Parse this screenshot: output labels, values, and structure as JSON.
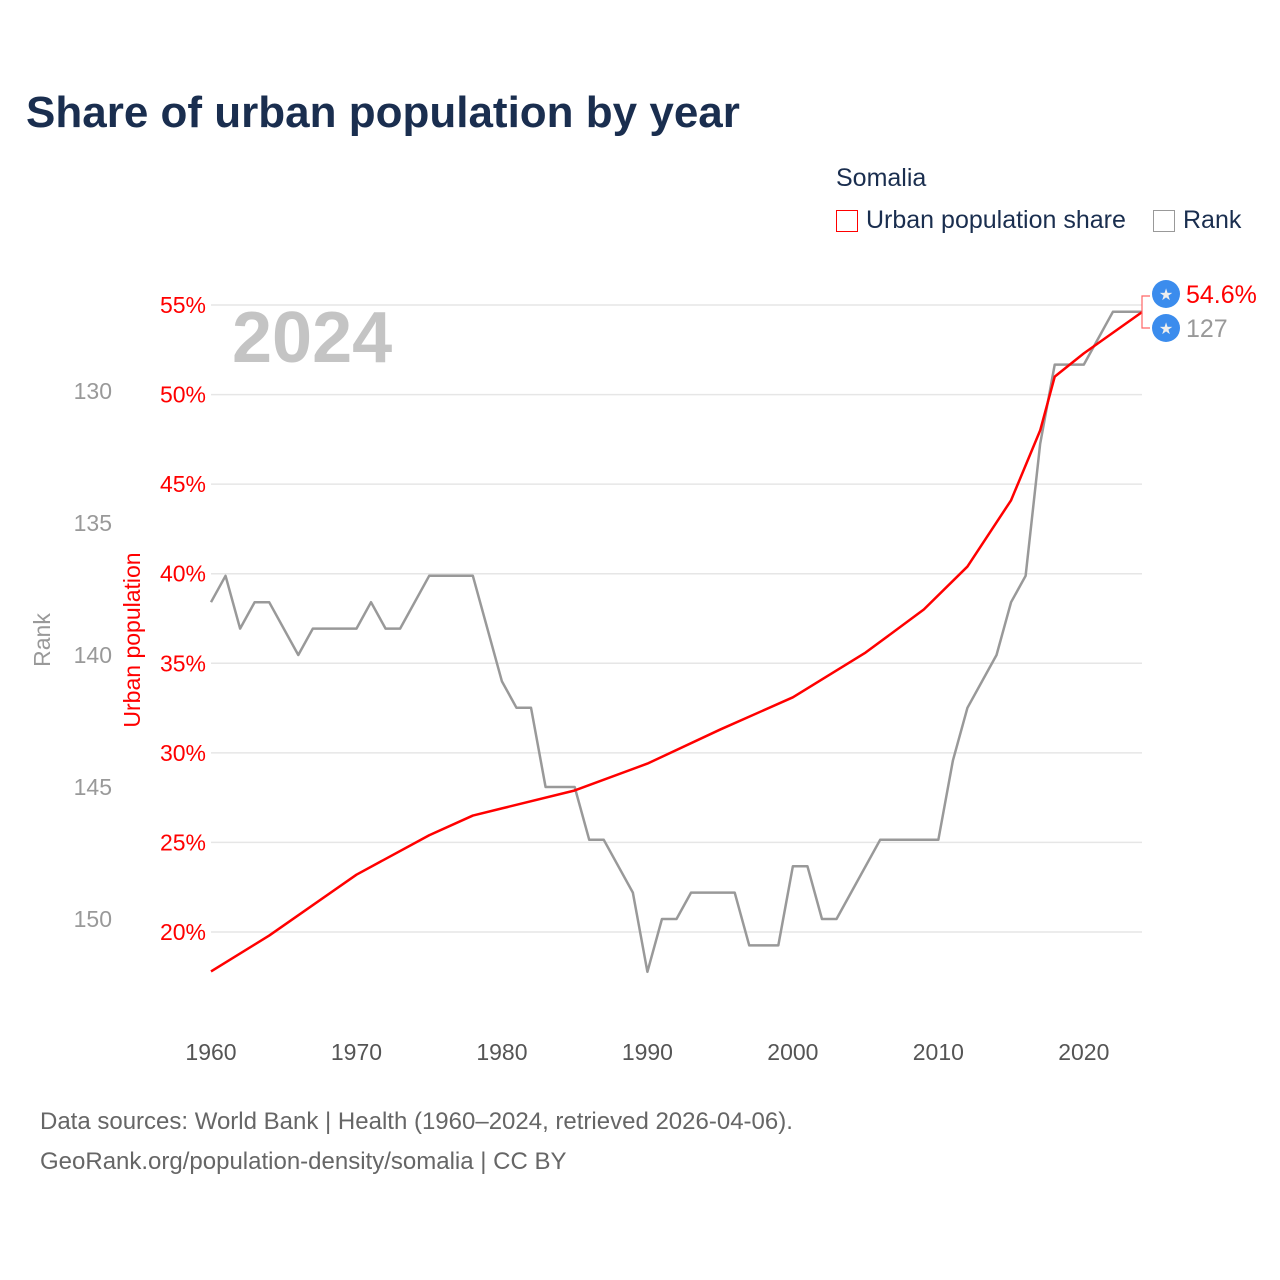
{
  "title": "Share of urban population by year",
  "legend": {
    "country": "Somalia",
    "items": [
      {
        "label": "Urban population share",
        "color": "#ff0000"
      },
      {
        "label": "Rank",
        "color": "#999999"
      }
    ]
  },
  "year_watermark": "2024",
  "end_labels": {
    "urban": "54.6%",
    "rank": "127",
    "icon": "star-icon",
    "badge_color": "#3b8ced"
  },
  "source": {
    "line1": "Data sources: World Bank | Health (1960–2024, retrieved 2026-04-06).",
    "line2": "GeoRank.org/population-density/somalia | CC BY"
  },
  "chart_data": {
    "type": "line",
    "title": "Share of urban population by year",
    "xlabel": "",
    "ylabel_left_outer": "Rank",
    "ylabel_left_inner": "Urban population",
    "xlim": [
      1960,
      2024
    ],
    "xticks": [
      "1960",
      "1970",
      "1980",
      "1990",
      "2000",
      "2010",
      "2020"
    ],
    "urban_ylim": [
      15,
      56
    ],
    "urban_ticks": [
      "20%",
      "25%",
      "30%",
      "35%",
      "40%",
      "45%",
      "50%",
      "55%"
    ],
    "rank_ticks": [
      "130",
      "135",
      "140",
      "145",
      "150"
    ],
    "grid": true,
    "legend_position": "top-right",
    "series": [
      {
        "name": "Urban population share",
        "axis": "urban",
        "color": "#ff0000",
        "x": [
          1960,
          1964,
          1970,
          1975,
          1978,
          1980,
          1985,
          1990,
          1995,
          2000,
          2005,
          2009,
          2012,
          2015,
          2017,
          2018,
          2020,
          2024
        ],
        "values": [
          17.8,
          19.8,
          23.2,
          25.4,
          26.5,
          26.9,
          27.9,
          29.4,
          31.3,
          33.1,
          35.6,
          38.0,
          40.4,
          44.1,
          48.0,
          51.0,
          52.3,
          54.6
        ]
      },
      {
        "name": "Rank",
        "axis": "rank",
        "color": "#999999",
        "x": [
          1960,
          1961,
          1962,
          1963,
          1964,
          1966,
          1967,
          1970,
          1971,
          1972,
          1973,
          1975,
          1978,
          1980,
          1981,
          1982,
          1983,
          1985,
          1986,
          1987,
          1989,
          1990,
          1991,
          1992,
          1993,
          1996,
          1997,
          1999,
          2000,
          2001,
          2002,
          2003,
          2006,
          2010,
          2011,
          2012,
          2014,
          2015,
          2016,
          2017,
          2018,
          2020,
          2022,
          2024
        ],
        "values": [
          138,
          137,
          139,
          138,
          138,
          140,
          139,
          139,
          138,
          139,
          139,
          137,
          137,
          141,
          142,
          142,
          145,
          145,
          147,
          147,
          149,
          152,
          150,
          150,
          149,
          149,
          151,
          151,
          148,
          148,
          150,
          150,
          147,
          147,
          144,
          142,
          140,
          138,
          137,
          132,
          129,
          129,
          127,
          127
        ]
      }
    ]
  }
}
